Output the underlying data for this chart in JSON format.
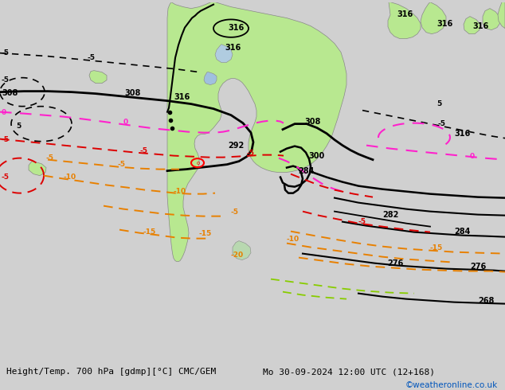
{
  "title_left": "Height/Temp. 700 hPa [gdmp][°C] CMC/GEM",
  "title_right": "Mo 30-09-2024 12:00 UTC (12+168)",
  "credit": "©weatheronline.co.uk",
  "background_color": "#d0d0d0",
  "land_color": "#b8e890",
  "border_color": "#888888",
  "figsize": [
    6.34,
    4.9
  ],
  "dpi": 100,
  "title_fontsize": 8.0,
  "credit_fontsize": 7.5,
  "credit_color": "#0055bb"
}
